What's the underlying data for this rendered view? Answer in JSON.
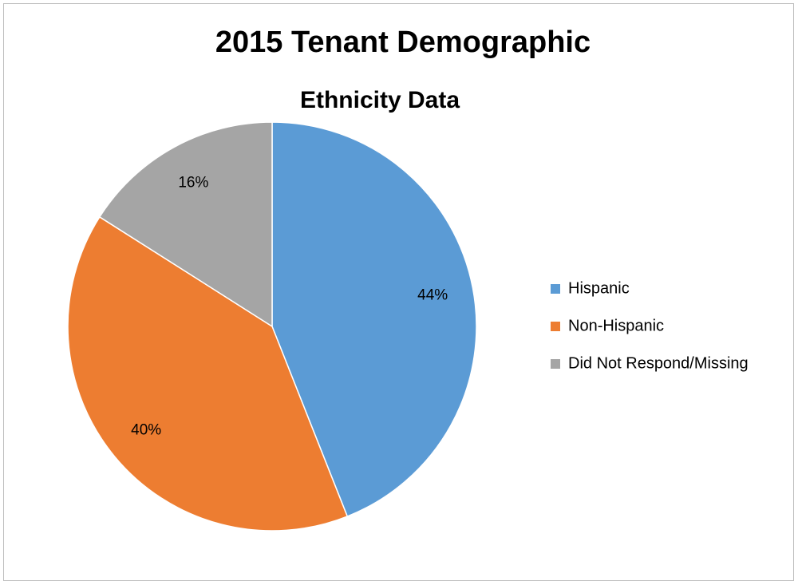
{
  "chart_data": {
    "type": "pie",
    "title": "2015 Tenant Demographic",
    "subtitle": "Ethnicity Data",
    "categories": [
      "Hispanic",
      "Non-Hispanic",
      "Did Not Respond/Missing"
    ],
    "values": [
      44,
      40,
      16
    ],
    "value_labels": [
      "44%",
      "40%",
      "16%"
    ],
    "colors": [
      "#5b9bd5",
      "#ed7d31",
      "#a5a5a5"
    ],
    "legend": "right"
  }
}
